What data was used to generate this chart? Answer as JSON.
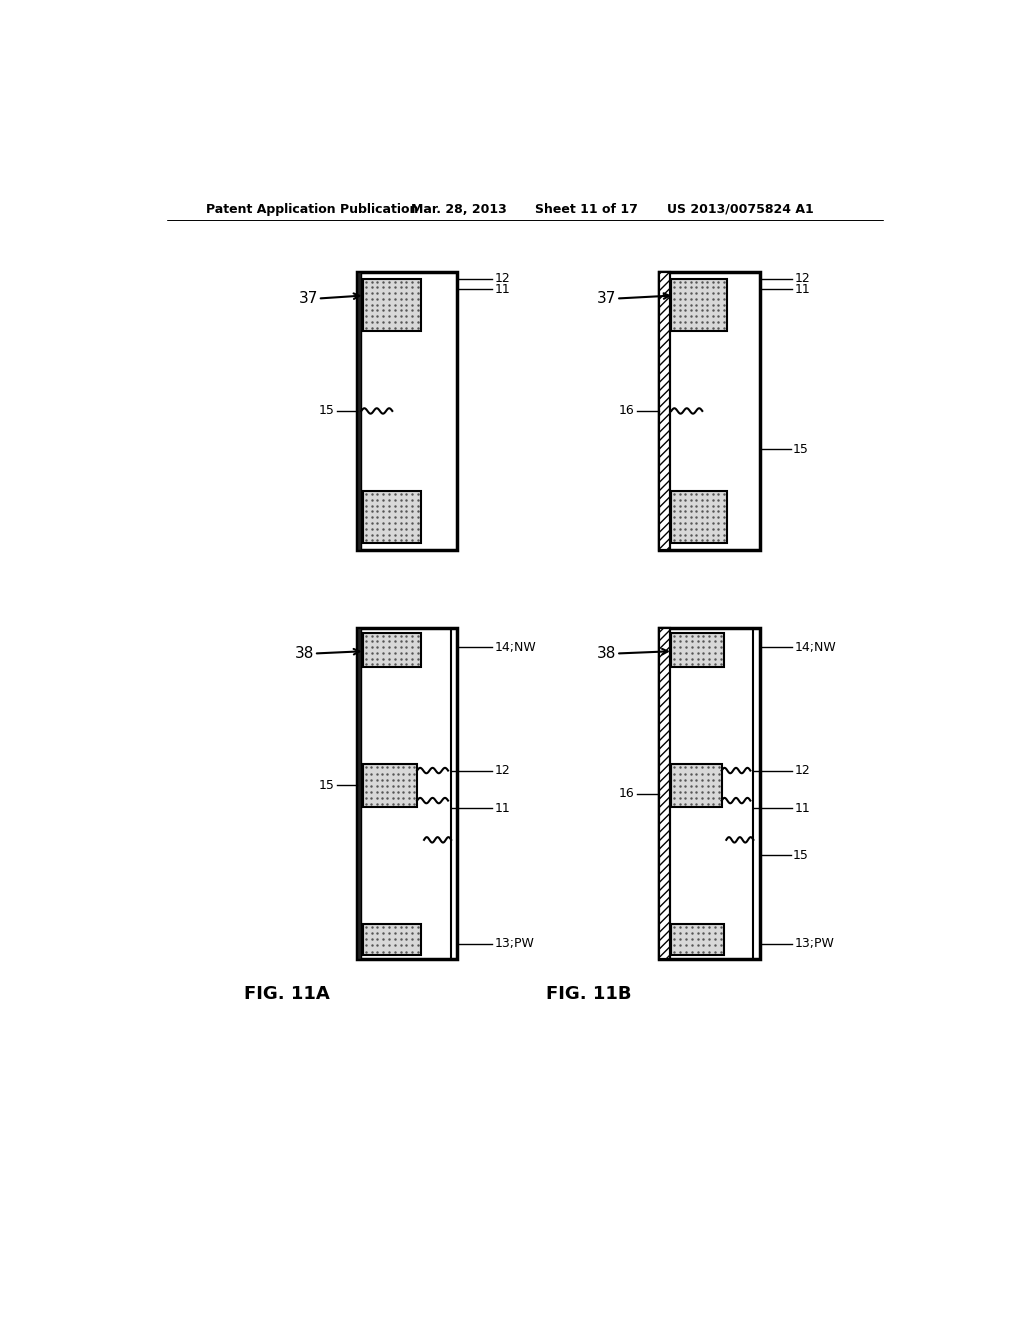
{
  "bg_color": "#ffffff",
  "header_text": "Patent Application Publication",
  "header_date": "Mar. 28, 2013",
  "header_sheet": "Sheet 11 of 17",
  "header_patent": "US 2013/0075824 A1",
  "fig11a_label": "FIG. 11A",
  "fig11b_label": "FIG. 11B",
  "dot_fill": "#d8d8d8",
  "hatch_fill": "#888888",
  "line_color": "#000000",
  "lw_thin": 1.0,
  "lw_med": 1.5,
  "lw_thick": 2.5
}
